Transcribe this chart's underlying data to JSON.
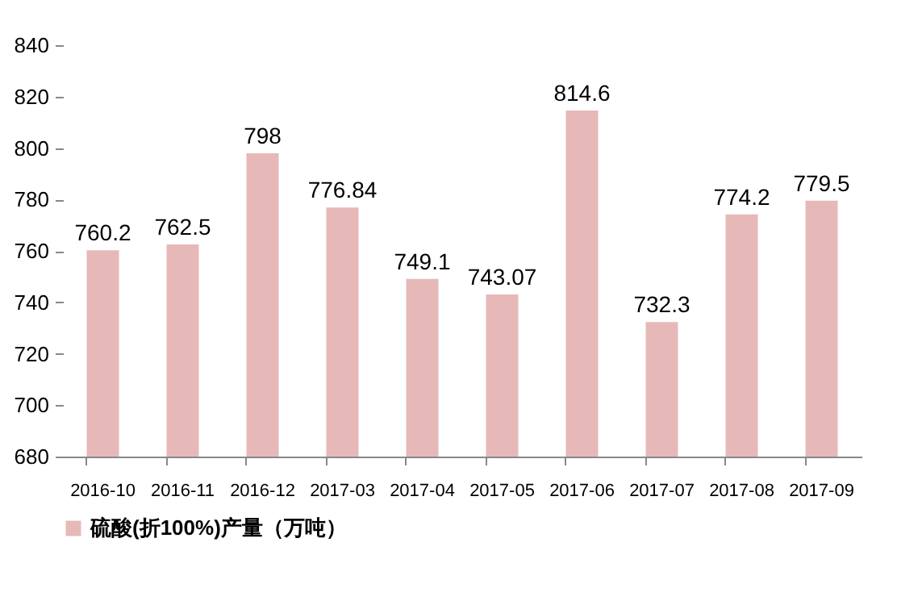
{
  "chart_data": {
    "type": "bar",
    "categories": [
      "2016-10",
      "2016-11",
      "2016-12",
      "2017-03",
      "2017-04",
      "2017-05",
      "2017-06",
      "2017-07",
      "2017-08",
      "2017-09"
    ],
    "series": [
      {
        "name": "硫酸(折100%)产量（万吨）",
        "color": "#e6b9b8",
        "values": [
          760.2,
          762.5,
          798,
          776.84,
          749.1,
          743.07,
          814.6,
          732.3,
          774.2,
          779.5
        ]
      }
    ],
    "ylim": [
      680,
      840
    ],
    "yticks": [
      680,
      700,
      720,
      740,
      760,
      780,
      800,
      820,
      840
    ],
    "data_labels": true,
    "legend": "bottom left",
    "grid": false
  }
}
